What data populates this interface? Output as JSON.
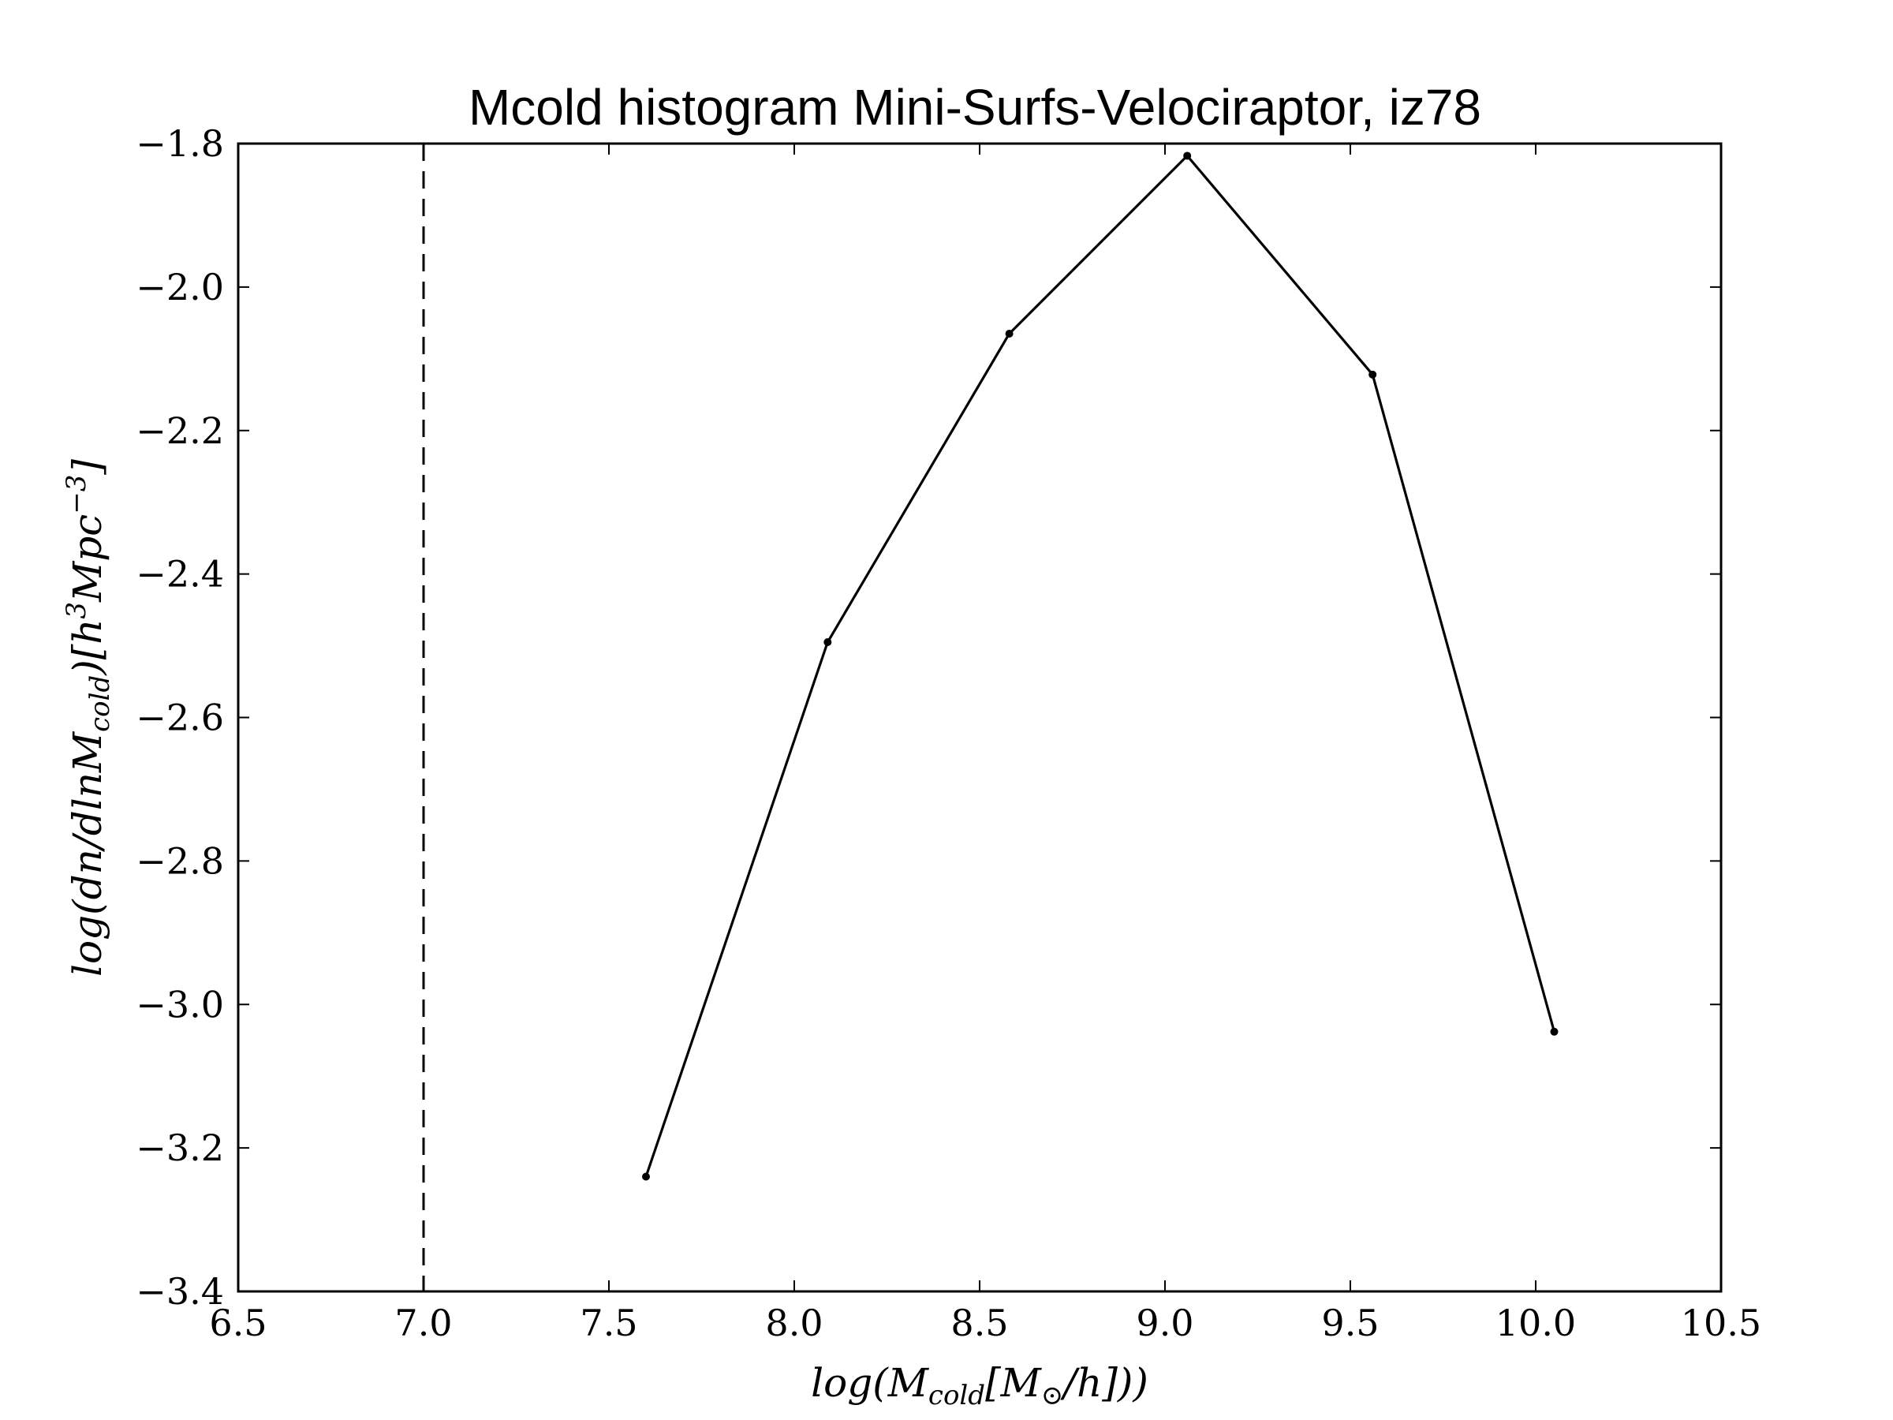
{
  "chart_data": {
    "type": "line",
    "title": "Mcold histogram Mini-Surfs-Velociraptor, iz78",
    "xlabel": "log(M_cold[M_⊙/h]))",
    "ylabel": "log(dn/dlnM_cold)[h^3Mpc^-3]",
    "xlim": [
      6.5,
      10.5
    ],
    "ylim": [
      -3.4,
      -1.8
    ],
    "xticks": [
      "6.5",
      "7.0",
      "7.5",
      "8.0",
      "8.5",
      "9.0",
      "9.5",
      "10.0",
      "10.5"
    ],
    "yticks": [
      "−1.8",
      "−2.0",
      "−2.2",
      "−2.4",
      "−2.6",
      "−2.8",
      "−3.0",
      "−3.2",
      "−3.4"
    ],
    "grid": false,
    "series": [
      {
        "x": [
          7.6,
          8.09,
          8.58,
          9.06,
          9.56,
          10.05
        ],
        "y": [
          -3.24,
          -2.495,
          -2.065,
          -1.817,
          -2.122,
          -3.038
        ],
        "color": "#000000",
        "marker": "dot"
      }
    ],
    "reference_lines": [
      {
        "orientation": "vertical",
        "x": 7.0,
        "style": "dashed",
        "color": "#000000"
      }
    ]
  }
}
